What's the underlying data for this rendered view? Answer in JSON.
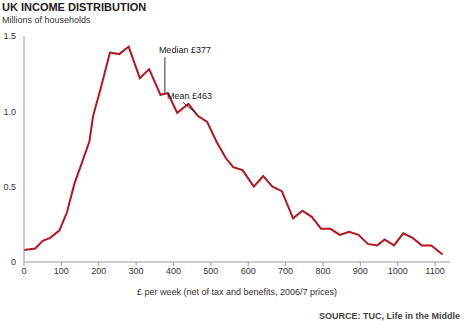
{
  "chart_data": {
    "type": "line",
    "title": "UK INCOME DISTRIBUTION",
    "subtitle": "Millions of households",
    "x_label": "£ per week (net of tax and benefits, 2006/7 prices)",
    "source": "SOURCE: TUC, Life in the Middle",
    "color": "#b8141c",
    "grid": false,
    "x": [
      0,
      30,
      50,
      70,
      95,
      115,
      135,
      155,
      175,
      185,
      205,
      230,
      255,
      280,
      310,
      335,
      365,
      385,
      410,
      440,
      465,
      490,
      515,
      540,
      560,
      585,
      615,
      640,
      665,
      690,
      720,
      745,
      770,
      795,
      820,
      845,
      870,
      895,
      920,
      945,
      965,
      990,
      1015,
      1040,
      1065,
      1090,
      1120
    ],
    "values": [
      0.08,
      0.09,
      0.14,
      0.16,
      0.21,
      0.33,
      0.52,
      0.66,
      0.8,
      0.97,
      1.15,
      1.39,
      1.38,
      1.43,
      1.22,
      1.28,
      1.11,
      1.12,
      0.99,
      1.05,
      0.97,
      0.93,
      0.8,
      0.69,
      0.63,
      0.61,
      0.5,
      0.57,
      0.5,
      0.47,
      0.29,
      0.34,
      0.3,
      0.22,
      0.22,
      0.18,
      0.2,
      0.18,
      0.12,
      0.11,
      0.15,
      0.11,
      0.19,
      0.16,
      0.11,
      0.11,
      0.05
    ],
    "xlim": [
      0,
      1140
    ],
    "xticks": [
      0,
      100,
      200,
      300,
      400,
      500,
      600,
      700,
      800,
      900,
      1000,
      1100
    ],
    "ylim": [
      0,
      1.5
    ],
    "yticks": [
      0,
      0.5,
      {
        "value": 1,
        "label": "1.0"
      },
      {
        "value": 1.5,
        "label": "1.5"
      }
    ],
    "annotations": [
      {
        "label": "Median £377",
        "x": 377,
        "y": 1.12
      },
      {
        "label": "Mean £463",
        "x": 463,
        "y": 0.98
      }
    ]
  }
}
